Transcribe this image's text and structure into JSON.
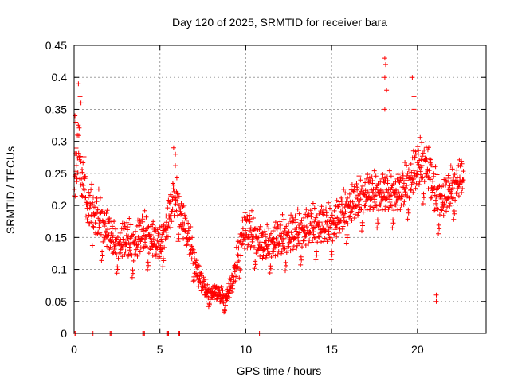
{
  "chart_data": {
    "type": "scatter",
    "title": "Day 120 of 2025, SRMTID for receiver bara",
    "xlabel": "GPS time / hours",
    "ylabel": "SRMTID / TECUs",
    "xlim": [
      0,
      24
    ],
    "ylim": [
      0,
      0.45
    ],
    "x_ticks": [
      0,
      5,
      10,
      15,
      20
    ],
    "y_ticks": [
      0,
      0.05,
      0.1,
      0.15,
      0.2,
      0.25,
      0.3,
      0.35,
      0.4,
      0.45
    ],
    "x_tick_labels": [
      "0",
      "5",
      "10",
      "15",
      "20"
    ],
    "y_tick_labels": [
      "0",
      "0.05",
      "0.1",
      "0.15",
      "0.2",
      "0.25",
      "0.3",
      "0.35",
      "0.4",
      "0.45"
    ],
    "grid": true,
    "marker": "+",
    "color": "#ff0000",
    "series": [
      {
        "name": "SRMTID",
        "trend": [
          {
            "x": 0.0,
            "y": 0.24,
            "spread": 0.07
          },
          {
            "x": 0.3,
            "y": 0.3,
            "spread": 0.07
          },
          {
            "x": 0.6,
            "y": 0.23,
            "spread": 0.06
          },
          {
            "x": 1.0,
            "y": 0.19,
            "spread": 0.06
          },
          {
            "x": 1.5,
            "y": 0.17,
            "spread": 0.06
          },
          {
            "x": 2.0,
            "y": 0.15,
            "spread": 0.05
          },
          {
            "x": 2.5,
            "y": 0.13,
            "spread": 0.04
          },
          {
            "x": 3.0,
            "y": 0.14,
            "spread": 0.05
          },
          {
            "x": 3.5,
            "y": 0.13,
            "spread": 0.05
          },
          {
            "x": 4.0,
            "y": 0.15,
            "spread": 0.05
          },
          {
            "x": 4.5,
            "y": 0.14,
            "spread": 0.05
          },
          {
            "x": 5.0,
            "y": 0.13,
            "spread": 0.04
          },
          {
            "x": 5.5,
            "y": 0.17,
            "spread": 0.05
          },
          {
            "x": 5.9,
            "y": 0.21,
            "spread": 0.06
          },
          {
            "x": 6.3,
            "y": 0.17,
            "spread": 0.05
          },
          {
            "x": 6.8,
            "y": 0.13,
            "spread": 0.04
          },
          {
            "x": 7.3,
            "y": 0.08,
            "spread": 0.03
          },
          {
            "x": 7.8,
            "y": 0.06,
            "spread": 0.02
          },
          {
            "x": 8.3,
            "y": 0.06,
            "spread": 0.02
          },
          {
            "x": 8.8,
            "y": 0.05,
            "spread": 0.02
          },
          {
            "x": 9.3,
            "y": 0.08,
            "spread": 0.03
          },
          {
            "x": 9.8,
            "y": 0.15,
            "spread": 0.05
          },
          {
            "x": 10.3,
            "y": 0.15,
            "spread": 0.05
          },
          {
            "x": 11.0,
            "y": 0.13,
            "spread": 0.04
          },
          {
            "x": 12.0,
            "y": 0.14,
            "spread": 0.05
          },
          {
            "x": 13.0,
            "y": 0.15,
            "spread": 0.05
          },
          {
            "x": 14.0,
            "y": 0.16,
            "spread": 0.05
          },
          {
            "x": 15.0,
            "y": 0.16,
            "spread": 0.05
          },
          {
            "x": 16.0,
            "y": 0.19,
            "spread": 0.05
          },
          {
            "x": 17.0,
            "y": 0.21,
            "spread": 0.05
          },
          {
            "x": 18.0,
            "y": 0.21,
            "spread": 0.05
          },
          {
            "x": 19.0,
            "y": 0.21,
            "spread": 0.05
          },
          {
            "x": 20.0,
            "y": 0.25,
            "spread": 0.06
          },
          {
            "x": 20.5,
            "y": 0.26,
            "spread": 0.06
          },
          {
            "x": 21.0,
            "y": 0.21,
            "spread": 0.06
          },
          {
            "x": 21.5,
            "y": 0.2,
            "spread": 0.05
          },
          {
            "x": 22.0,
            "y": 0.22,
            "spread": 0.05
          },
          {
            "x": 22.7,
            "y": 0.24,
            "spread": 0.05
          }
        ],
        "outliers": [
          {
            "x": 18.1,
            "y": 0.43
          },
          {
            "x": 18.15,
            "y": 0.42
          },
          {
            "x": 18.1,
            "y": 0.4
          },
          {
            "x": 18.2,
            "y": 0.38
          },
          {
            "x": 18.1,
            "y": 0.35
          },
          {
            "x": 19.7,
            "y": 0.4
          },
          {
            "x": 19.8,
            "y": 0.37
          },
          {
            "x": 19.8,
            "y": 0.35
          },
          {
            "x": 0.25,
            "y": 0.39
          },
          {
            "x": 0.35,
            "y": 0.37
          },
          {
            "x": 0.4,
            "y": 0.36
          },
          {
            "x": 0.05,
            "y": 0.34
          },
          {
            "x": 0.1,
            "y": 0.33
          },
          {
            "x": 5.8,
            "y": 0.29
          },
          {
            "x": 5.9,
            "y": 0.28
          },
          {
            "x": 21.1,
            "y": 0.05
          },
          {
            "x": 21.1,
            "y": 0.06
          }
        ],
        "zero_points": [
          0.05,
          0.1,
          1.1,
          2.1,
          2.15,
          4.0,
          4.05,
          4.1,
          5.4,
          5.45,
          5.5,
          6.1,
          6.15,
          10.8
        ]
      }
    ]
  }
}
